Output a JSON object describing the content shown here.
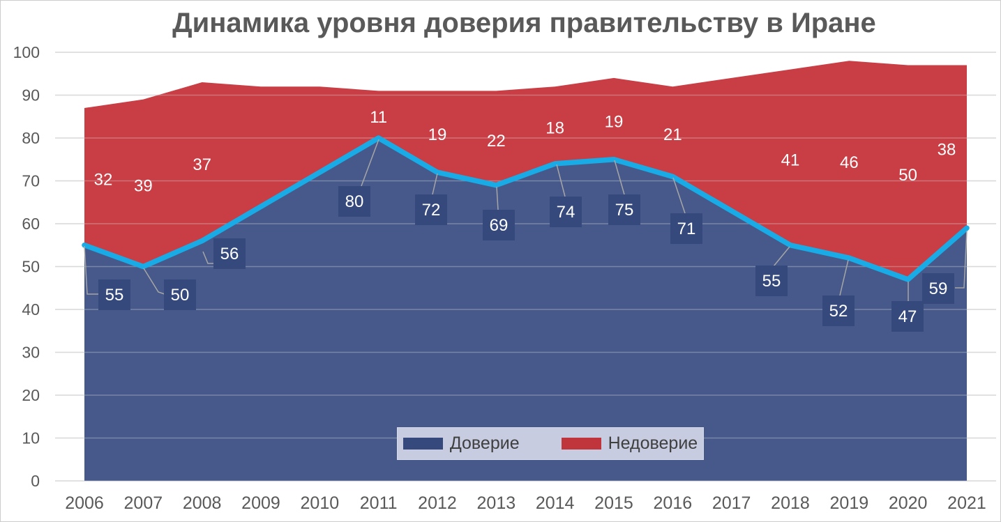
{
  "chart_data": {
    "type": "area",
    "stacked": true,
    "title": "Динамика уровня доверия правительству в Иране",
    "categories": [
      "2006",
      "2007",
      "2008",
      "2009",
      "2010",
      "2011",
      "2012",
      "2013",
      "2014",
      "2015",
      "2016",
      "2017",
      "2018",
      "2019",
      "2020",
      "2021"
    ],
    "series": [
      {
        "name": "Доверие",
        "area_color": "#46598a",
        "swatch_color": "#35497c",
        "values": [
          55,
          50,
          56,
          64,
          72,
          80,
          72,
          69,
          74,
          75,
          71,
          63,
          55,
          52,
          47,
          59
        ],
        "data_labels": [
          55,
          50,
          56,
          null,
          null,
          80,
          72,
          69,
          74,
          75,
          71,
          null,
          55,
          52,
          47,
          59
        ]
      },
      {
        "name": "Недоверие",
        "area_color": "#c93d44",
        "swatch_color": "#c0353c",
        "values": [
          32,
          39,
          37,
          28,
          20,
          11,
          19,
          22,
          18,
          19,
          21,
          31,
          41,
          46,
          50,
          38
        ],
        "data_labels": [
          32,
          39,
          37,
          null,
          null,
          11,
          19,
          22,
          18,
          19,
          21,
          null,
          41,
          46,
          50,
          38
        ]
      }
    ],
    "trust_line_color": "#18abe6",
    "label_box_color": "#35497c",
    "label_text_color": "#ffffff",
    "leader_line_color": "#a6a6a6",
    "grid": true,
    "gridline_color": "#d9d9d9",
    "axis_text_color": "#595959",
    "ylim": [
      0,
      100
    ],
    "yticks": [
      0,
      10,
      20,
      30,
      40,
      50,
      60,
      70,
      80,
      90,
      100
    ],
    "legend_position": "bottom-inside",
    "xlabel": "",
    "ylabel": ""
  },
  "legend": {
    "trust": "Доверие",
    "distrust": "Недоверие"
  }
}
